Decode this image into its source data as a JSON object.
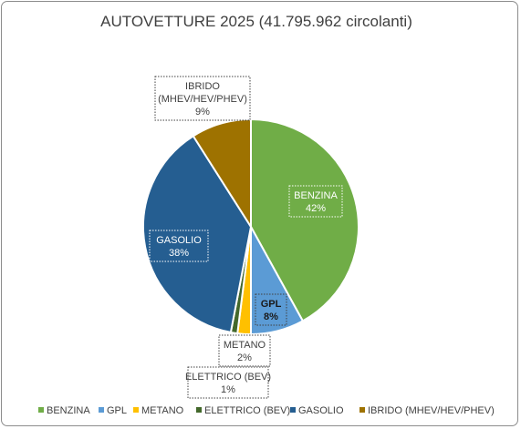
{
  "chart_data": {
    "type": "pie",
    "title": "AUTOVETTURE 2025 (41.795.962 circolanti)",
    "legend_position": "bottom",
    "slices": [
      {
        "name": "BENZINA",
        "label": "BENZINA",
        "value": 42,
        "value_label": "42%",
        "color": "#70ad47"
      },
      {
        "name": "GPL",
        "label": "GPL",
        "value": 8,
        "value_label": "8%",
        "color": "#5b9bd5"
      },
      {
        "name": "METANO",
        "label": "METANO",
        "value": 2,
        "value_label": "2%",
        "color": "#ffc000"
      },
      {
        "name": "ELETTRICO (BEV)",
        "label": "ELETTRICO (BEV)",
        "value": 1,
        "value_label": "1%",
        "color": "#43682b"
      },
      {
        "name": "GASOLIO",
        "label": "GASOLIO",
        "value": 38,
        "value_label": "38%",
        "color": "#255e91"
      },
      {
        "name": "IBRIDO (MHEV/HEV/PHEV)",
        "label": "IBRIDO\n(MHEV/HEV/PHEV)",
        "value": 9,
        "value_label": "9%",
        "color": "#9e7200"
      }
    ]
  }
}
